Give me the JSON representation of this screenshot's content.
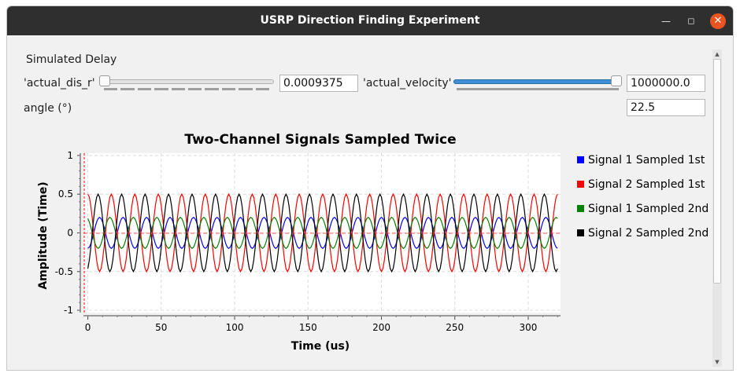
{
  "window": {
    "title": "USRP Direction Finding Experiment"
  },
  "controls": {
    "section_label": "Simulated Delay",
    "dis_label": "'actual_dis_r'",
    "dis_value": "0.0009375",
    "dis_slider_position": 0.0,
    "vel_label": "'actual_velocity'",
    "vel_value": "1000000.0",
    "vel_slider_position": 1.0,
    "angle_label": "angle (°)",
    "angle_value": "22.5"
  },
  "chart_data": {
    "type": "line",
    "title": "Two-Channel Signals Sampled Twice",
    "xlabel": "Time (us)",
    "ylabel": "Amplitude (Time)",
    "xlim": [
      -3,
      322
    ],
    "ylim": [
      -1.03,
      1.03
    ],
    "xticks": [
      "0",
      "50",
      "100",
      "150",
      "200",
      "250",
      "300"
    ],
    "yticks": [
      "1",
      "0.5",
      "0",
      "-0.5",
      "-1"
    ],
    "grid": true,
    "legend_position": "right",
    "sample_rate_points_per_us": 1,
    "series": [
      {
        "name": "Signal 1 Sampled 1st",
        "color": "#0000ff",
        "amplitude": 0.2,
        "period_us": 16,
        "phase_deg": -90,
        "x_max": 320
      },
      {
        "name": "Signal 2 Sampled 1st",
        "color": "#ff0000",
        "amplitude": 0.5,
        "period_us": 16,
        "phase_deg": 90,
        "x_max": 320
      },
      {
        "name": "Signal 1 Sampled 2nd",
        "color": "#008000",
        "amplitude": 0.2,
        "period_us": 16,
        "phase_deg": 112.5,
        "x_max": 320
      },
      {
        "name": "Signal 2 Sampled 2nd",
        "color": "#000000",
        "amplitude": 0.5,
        "period_us": 16,
        "phase_deg": -67.5,
        "x_max": 320
      }
    ]
  }
}
